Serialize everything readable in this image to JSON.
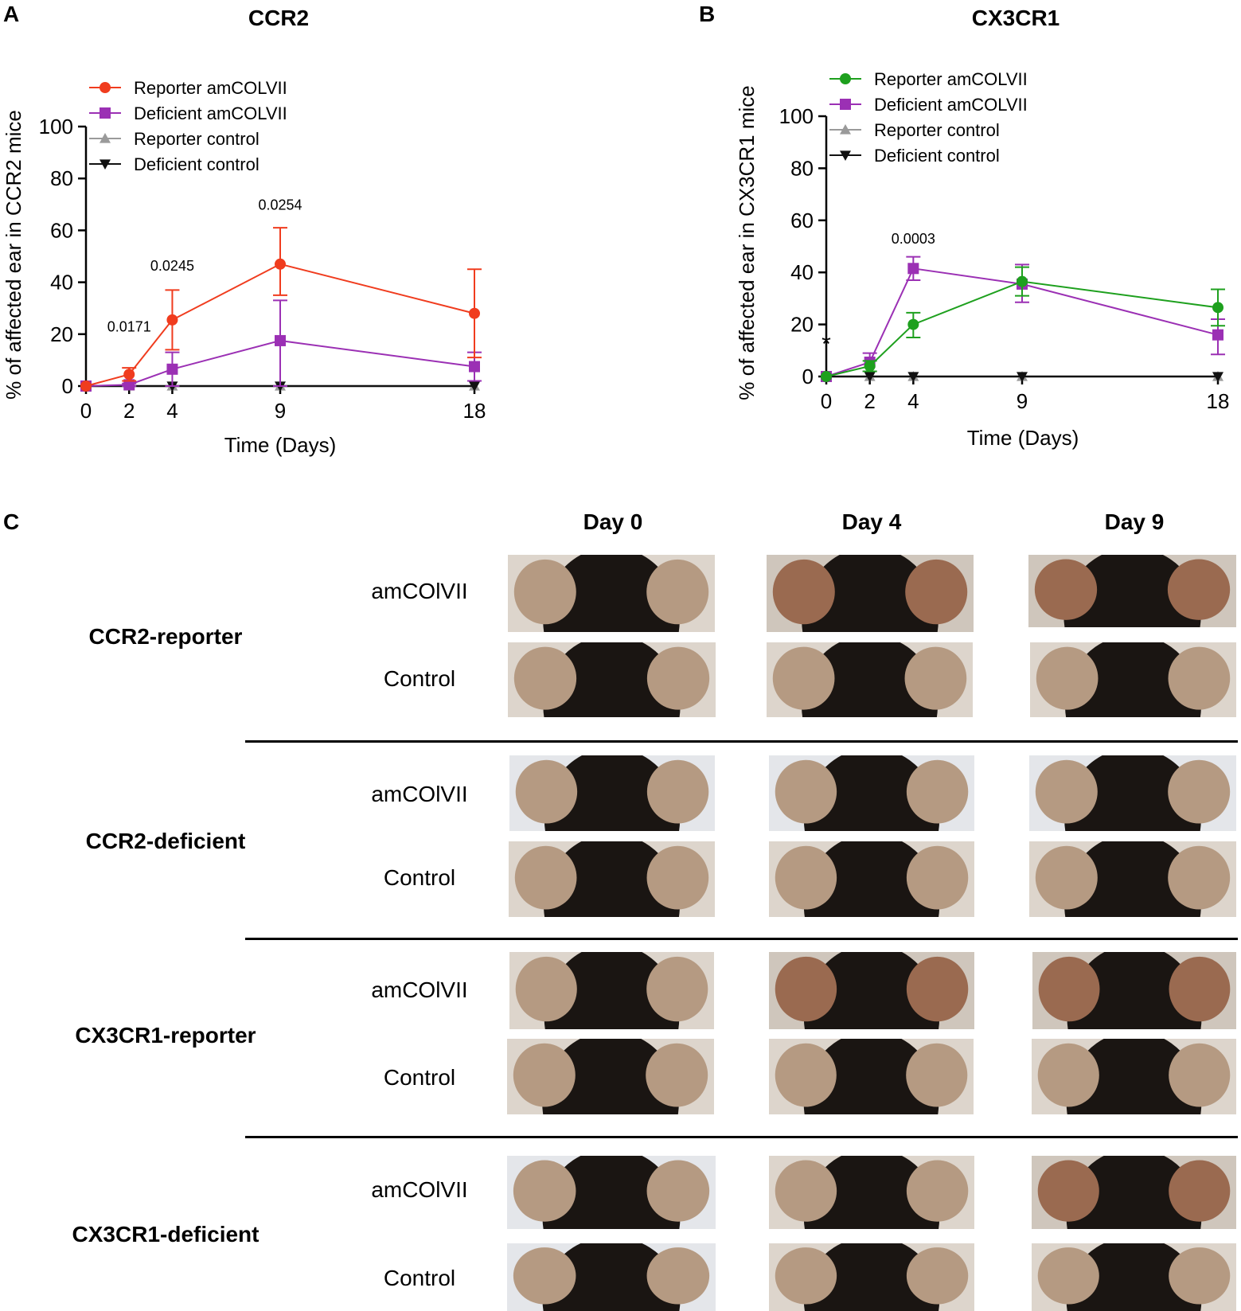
{
  "panels": {
    "a": "A",
    "b": "B",
    "c": "C"
  },
  "chart_data": [
    {
      "type": "line",
      "title": "CCR2",
      "xlabel": "Time (Days)",
      "ylabel": "% of affected ear in CCR2 mice",
      "x": [
        0,
        2,
        4,
        9,
        18
      ],
      "xticks": [
        "0",
        "2",
        "4",
        "9",
        "18"
      ],
      "yticks": [
        "0",
        "20",
        "40",
        "60",
        "80",
        "100"
      ],
      "ylim": [
        0,
        100
      ],
      "xlim": [
        0,
        18
      ],
      "legend": "top-left",
      "series": [
        {
          "name": "Reporter amCOLVII",
          "color": "#f03c1e",
          "marker": "circle",
          "values": [
            0,
            4.5,
            25.5,
            47,
            28
          ],
          "err_up": [
            0,
            7,
            37,
            61,
            45
          ],
          "err_down": [
            0,
            2,
            14,
            35,
            11
          ]
        },
        {
          "name": "Deficient amCOLVII",
          "color": "#9b30b4",
          "marker": "square",
          "values": [
            0,
            0.5,
            6.5,
            17.5,
            7.5
          ],
          "err_up": [
            0,
            1,
            13,
            33,
            13
          ],
          "err_down": [
            0,
            0,
            0,
            0,
            2
          ]
        },
        {
          "name": "Reporter control",
          "color": "#9a9a9a",
          "marker": "triangle-up",
          "values": [
            0,
            0,
            0,
            0,
            0
          ]
        },
        {
          "name": "Deficient control",
          "color": "#111111",
          "marker": "triangle-down",
          "values": [
            0,
            0,
            0,
            0,
            0
          ]
        }
      ],
      "annotations": [
        {
          "x": 2,
          "y": 21,
          "text": "0.0171"
        },
        {
          "x": 4,
          "y": 44.5,
          "text": "0.0245"
        },
        {
          "x": 9,
          "y": 68,
          "text": "0.0254"
        }
      ]
    },
    {
      "type": "line",
      "title": "CX3CR1",
      "xlabel": "Time (Days)",
      "ylabel": "% of affected ear in  CX3CR1 mice",
      "x": [
        0,
        2,
        4,
        9,
        18
      ],
      "xticks": [
        "0",
        "2",
        "4",
        "9",
        "18"
      ],
      "yticks": [
        "0",
        "20",
        "40",
        "60",
        "80",
        "100"
      ],
      "ylim": [
        0,
        100
      ],
      "xlim": [
        0,
        18
      ],
      "legend": "top-left",
      "series": [
        {
          "name": "Reporter amCOLVII",
          "color": "#1ea01e",
          "marker": "circle",
          "values": [
            0,
            4,
            20,
            36.5,
            26.5
          ],
          "err_up": [
            0,
            6,
            24.5,
            42,
            33.5
          ],
          "err_down": [
            0,
            2,
            15,
            31,
            19.5
          ]
        },
        {
          "name": "Deficient amCOLVII",
          "color": "#9b30b4",
          "marker": "square",
          "values": [
            0,
            5.5,
            41.5,
            35.5,
            16
          ],
          "err_up": [
            0,
            9,
            46,
            43,
            22
          ],
          "err_down": [
            0,
            2,
            37,
            28.5,
            8.5
          ]
        },
        {
          "name": "Reporter control",
          "color": "#9a9a9a",
          "marker": "triangle-up",
          "values": [
            0,
            0,
            0,
            0,
            0
          ]
        },
        {
          "name": "Deficient control",
          "color": "#111111",
          "marker": "triangle-down",
          "values": [
            0,
            0,
            0,
            0,
            0
          ]
        }
      ],
      "annotations": [
        {
          "x": 4,
          "y": 51,
          "text": "0.0003"
        },
        {
          "x": 0,
          "y": 9.5,
          "text": "*"
        }
      ]
    }
  ],
  "grid": {
    "days": [
      "Day 0",
      "Day 4",
      "Day 9"
    ],
    "groups": [
      {
        "label": "CCR2-reporter",
        "rows": [
          "amCOlVII",
          "Control"
        ]
      },
      {
        "label": "CCR2-deficient",
        "rows": [
          "amCOlVII",
          "Control"
        ]
      },
      {
        "label": "CX3CR1-reporter",
        "rows": [
          "amCOlVII",
          "Control"
        ]
      },
      {
        "label": "CX3CR1-deficient",
        "rows": [
          "amCOlVII",
          "Control"
        ]
      }
    ]
  }
}
